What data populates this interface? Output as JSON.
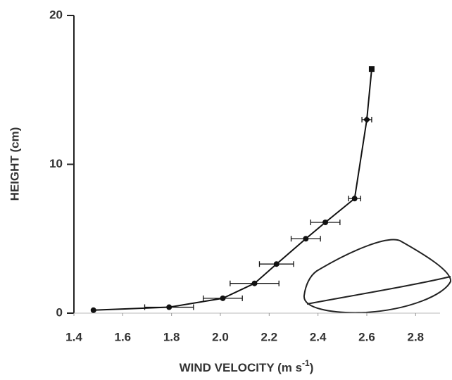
{
  "chart_data": {
    "type": "profile",
    "x_label": {
      "text": "WIND VELOCITY (m s",
      "superscript": "-1",
      "suffix": ")"
    },
    "y_label": "HEIGHT (cm)",
    "x": [
      1.48,
      1.79,
      2.01,
      2.14,
      2.23,
      2.35,
      2.43,
      2.55,
      2.6,
      2.62
    ],
    "values": [
      0.2,
      0.4,
      1.0,
      2.0,
      3.3,
      5.0,
      6.1,
      7.7,
      13.0,
      16.4
    ],
    "x_errors": [
      null,
      0.1,
      0.08,
      0.1,
      0.07,
      0.06,
      0.06,
      0.025,
      0.02,
      null
    ],
    "markers": [
      "circle",
      "circle",
      "circle",
      "circle",
      "circle",
      "circle",
      "circle",
      "circle",
      "diamond",
      "square"
    ],
    "color": "#111111",
    "xlim": [
      1.4,
      2.9
    ],
    "ylim": [
      0,
      20
    ],
    "xticks": [
      1.4,
      1.6,
      1.8,
      {
        "value": 2,
        "label": "2.0"
      },
      2.2,
      2.4,
      2.6,
      2.8
    ],
    "yticks": [
      0,
      10,
      20
    ]
  }
}
